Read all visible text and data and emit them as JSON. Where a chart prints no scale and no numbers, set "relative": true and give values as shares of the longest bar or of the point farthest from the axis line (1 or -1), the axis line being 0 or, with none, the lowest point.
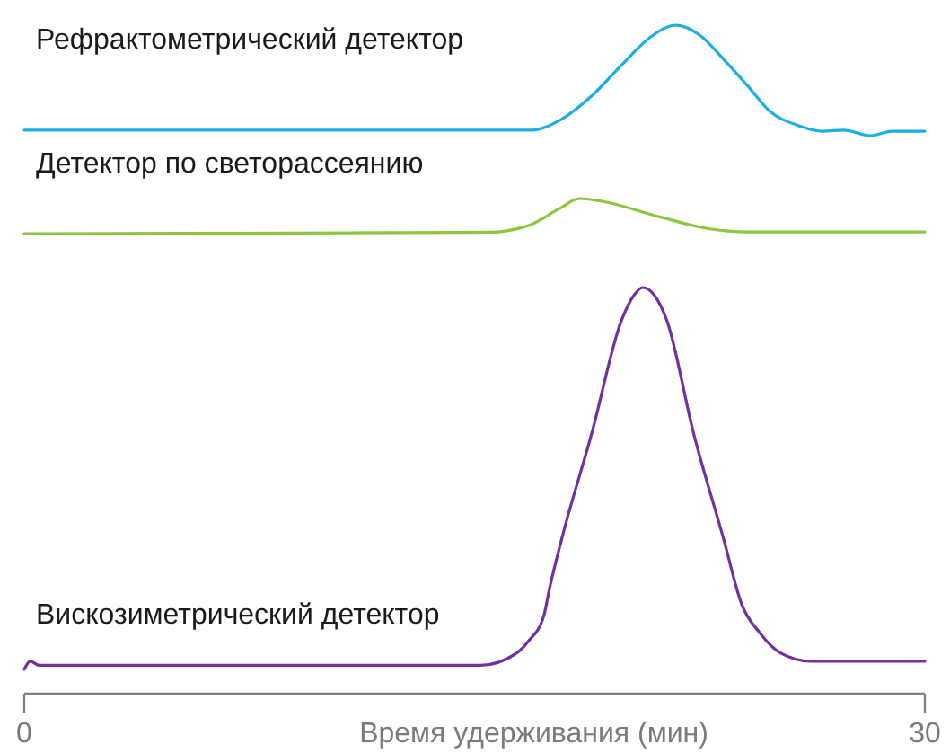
{
  "chart_data": [
    {
      "type": "line",
      "relative": true,
      "tick_labels": false,
      "xlim": [
        0,
        30
      ],
      "x": [
        0,
        16.5,
        16.9,
        17.9,
        18.9,
        19.9,
        20.9,
        21.7,
        22.5,
        23.3,
        24.1,
        24.8,
        25.8,
        26.6,
        27.3,
        28.2,
        28.9,
        30
      ],
      "series": [
        {
          "name": "Рефрактометрический детектор",
          "color": "#1aaee5",
          "values": [
            0.05,
            0.05,
            0.05,
            0.15,
            0.36,
            0.64,
            0.9,
            1,
            0.91,
            0.69,
            0.45,
            0.23,
            0.09,
            0.04,
            0.05,
            0,
            0.04,
            0.04
          ]
        }
      ]
    },
    {
      "type": "line",
      "relative": true,
      "tick_labels": false,
      "xlim": [
        0,
        30
      ],
      "x": [
        0,
        15.6,
        16.2,
        16.8,
        17.8,
        18.5,
        19.2,
        21.2,
        22.8,
        24,
        30
      ],
      "series": [
        {
          "name": "Детектор по светорассеянию",
          "color": "#8cc540",
          "values": [
            0,
            0.04,
            0.1,
            0.23,
            0.7,
            1,
            0.93,
            0.47,
            0.14,
            0.05,
            0.05
          ]
        }
      ]
    },
    {
      "type": "line",
      "relative": true,
      "tick_labels": "x",
      "xlim": [
        0,
        30
      ],
      "xticks": [
        0,
        30
      ],
      "xlabel": "Время удерживания (мин)",
      "x": [
        0,
        0.2,
        0.5,
        15.2,
        16.4,
        16.8,
        17.3,
        17.5,
        17.9,
        18.9,
        19.9,
        20.3,
        20.6,
        21.0,
        21.4,
        22.3,
        23.3,
        23.9,
        24.5,
        25.2,
        26.2,
        27.8,
        30
      ],
      "series": [
        {
          "name": "Вискозиметрический детектор",
          "color": "#7030a0",
          "values": [
            0.06,
            0.08,
            0.07,
            0.07,
            0.1,
            0.13,
            0.19,
            0.26,
            0.38,
            0.64,
            0.92,
            0.98,
            1,
            0.98,
            0.92,
            0.64,
            0.38,
            0.22,
            0.15,
            0.1,
            0.08,
            0.08,
            0.08
          ]
        }
      ]
    }
  ]
}
